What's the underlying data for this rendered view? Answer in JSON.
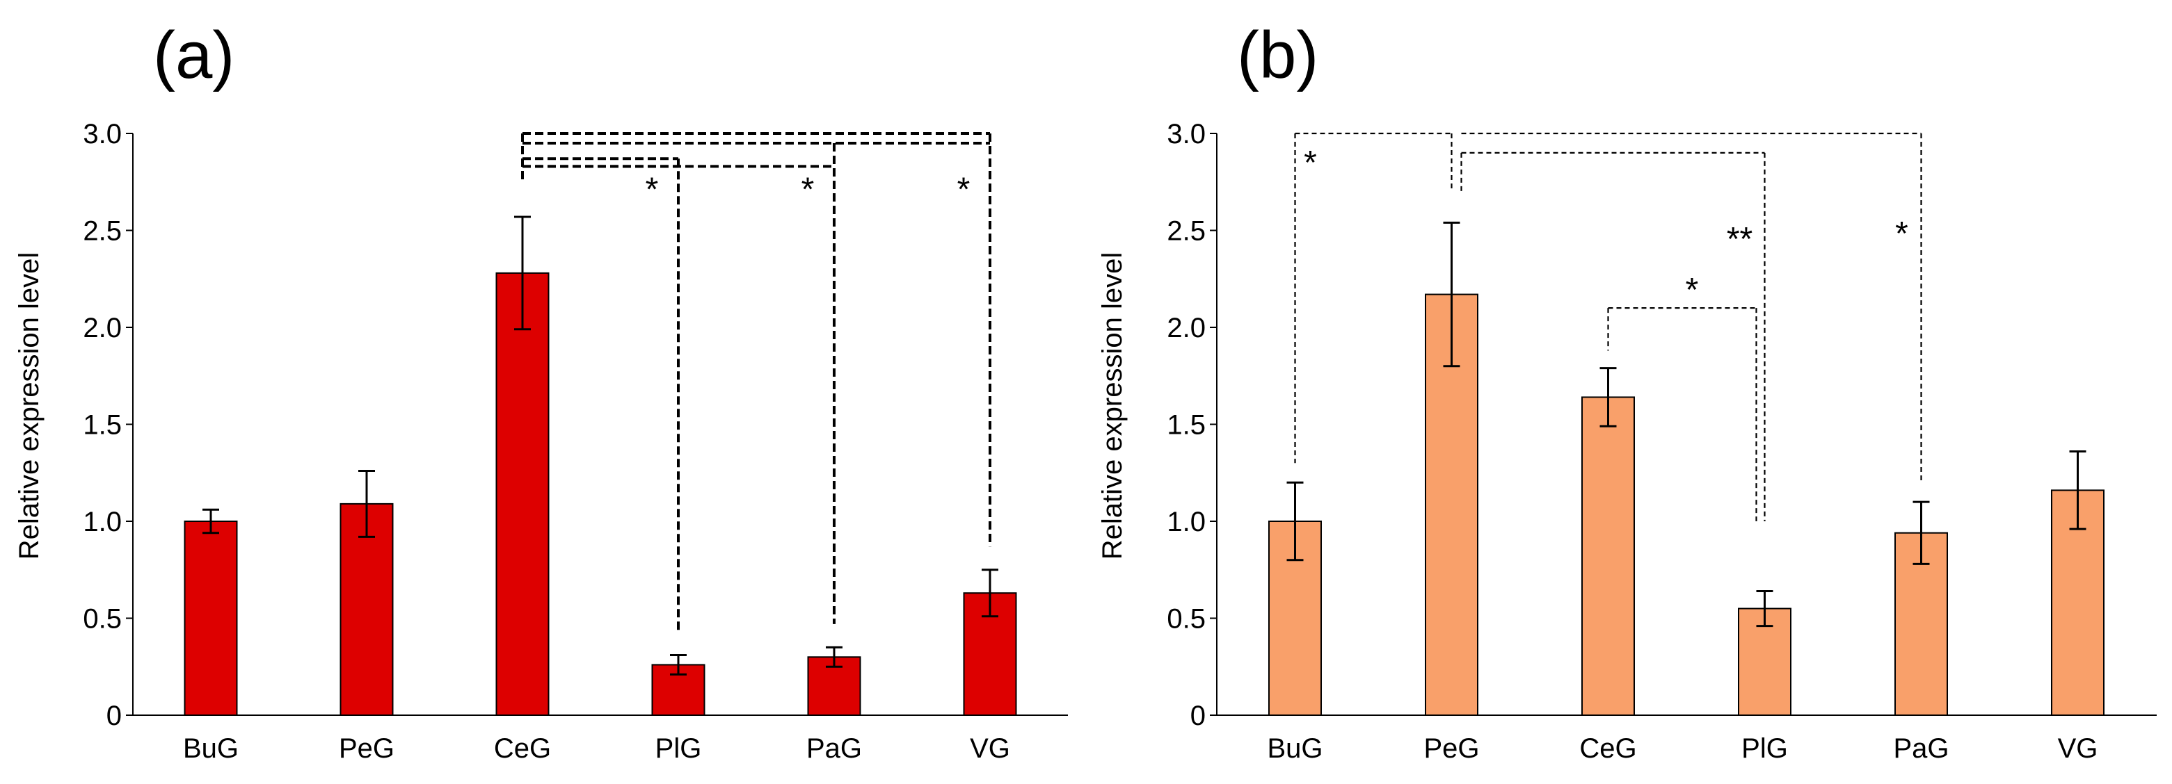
{
  "chart_data": [
    {
      "panel_label": "(a)",
      "type": "bar",
      "ylabel": "Relative expression level",
      "xlabel": "",
      "ylim": [
        0,
        3.0
      ],
      "yticks": [
        "0",
        "0.5",
        "1.0",
        "1.5",
        "2.0",
        "2.5",
        "3.0"
      ],
      "ytick_values": [
        0,
        0.5,
        1.0,
        1.5,
        2.0,
        2.5,
        3.0
      ],
      "categories": [
        "BuG",
        "PeG",
        "CeG",
        "PlG",
        "PaG",
        "VG"
      ],
      "values": [
        1.0,
        1.09,
        2.28,
        0.26,
        0.3,
        0.63
      ],
      "errors": [
        0.06,
        0.17,
        0.29,
        0.05,
        0.05,
        0.12
      ],
      "bar_color": "#dd0000",
      "bracket_style": "heavy",
      "significance": [
        {
          "from": "CeG",
          "to": "PlG",
          "label": "*"
        },
        {
          "from": "CeG",
          "to": "PaG",
          "label": "*"
        },
        {
          "from": "CeG",
          "to": "VG",
          "label": "*"
        }
      ]
    },
    {
      "panel_label": "(b)",
      "type": "bar",
      "ylabel": "Relative expression level",
      "xlabel": "",
      "ylim": [
        0,
        3.0
      ],
      "yticks": [
        "0",
        "0.5",
        "1.0",
        "1.5",
        "2.0",
        "2.5",
        "3.0"
      ],
      "ytick_values": [
        0,
        0.5,
        1.0,
        1.5,
        2.0,
        2.5,
        3.0
      ],
      "categories": [
        "BuG",
        "PeG",
        "CeG",
        "PlG",
        "PaG",
        "VG"
      ],
      "values": [
        1.0,
        2.17,
        1.64,
        0.55,
        0.94,
        1.16
      ],
      "errors": [
        0.2,
        0.37,
        0.15,
        0.09,
        0.16,
        0.2
      ],
      "bar_color": "#f9a06a",
      "bracket_style": "light",
      "significance": [
        {
          "from": "BuG",
          "to": "PeG",
          "label": "*"
        },
        {
          "from": "PeG",
          "to": "PlG",
          "label": "**"
        },
        {
          "from": "PeG",
          "to": "PaG",
          "label": "*"
        },
        {
          "from": "CeG",
          "to": "PlG",
          "label": "*"
        }
      ]
    }
  ]
}
